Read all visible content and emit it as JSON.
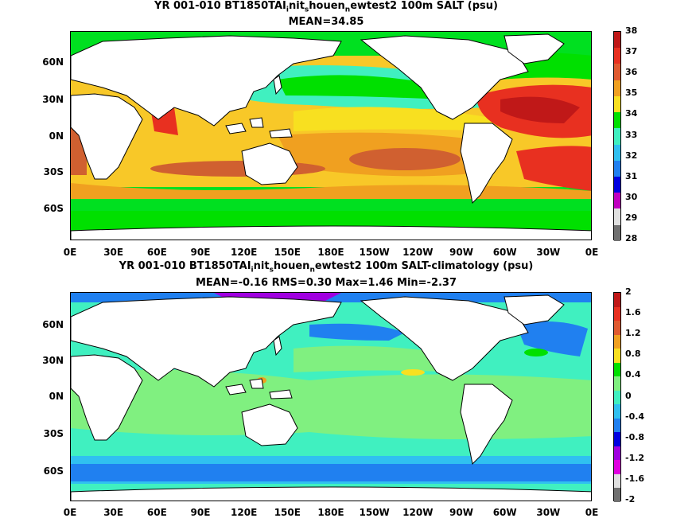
{
  "panel1": {
    "title_prefix": "YR 001-010 BT1850TAI",
    "title_sub1": "i",
    "title_mid1": "nit",
    "title_sub2": "s",
    "title_mid2": "houen",
    "title_sub3": "n",
    "title_suffix": "ewtest2 100m SALT (psu)",
    "stats": "MEAN=34.85",
    "colorbar": {
      "labels": [
        "38",
        "37",
        "36",
        "35",
        "34",
        "33",
        "32",
        "31",
        "30",
        "29",
        "28"
      ],
      "colors": [
        "#c01818",
        "#e83020",
        "#e05a30",
        "#f0a020",
        "#f8e020",
        "#00e000",
        "#40f0c0",
        "#30c0f0",
        "#2080f0",
        "#0000e0",
        "#c000c0",
        "#e0e0e0",
        "#707070"
      ]
    }
  },
  "panel2": {
    "title_prefix": "YR 001-010 BT1850TAI",
    "title_sub1": "i",
    "title_mid1": "nit",
    "title_sub2": "s",
    "title_mid2": "houen",
    "title_sub3": "n",
    "title_suffix": "ewtest2 100m SALT-climatology (psu)",
    "stats": "MEAN=-0.16   RMS=0.30   Max=1.46   Min=-2.37",
    "colorbar": {
      "labels": [
        "2",
        "1.6",
        "1.2",
        "0.8",
        "0.4",
        "0",
        "-0.4",
        "-0.8",
        "-1.2",
        "-1.6",
        "-2"
      ],
      "colors": [
        "#c01818",
        "#e83020",
        "#e05a30",
        "#f0a020",
        "#f8e020",
        "#00e000",
        "#80f080",
        "#40f0c0",
        "#30c0f0",
        "#2080f0",
        "#0000e0",
        "#a000e0",
        "#e000e0",
        "#e0e0e0",
        "#707070"
      ]
    }
  },
  "axes": {
    "lat_labels": [
      "60N",
      "30N",
      "0N",
      "30S",
      "60S"
    ],
    "lon_labels": [
      "0E",
      "30E",
      "60E",
      "90E",
      "120E",
      "150E",
      "180E",
      "150W",
      "120W",
      "90W",
      "60W",
      "30W",
      "0E"
    ]
  }
}
